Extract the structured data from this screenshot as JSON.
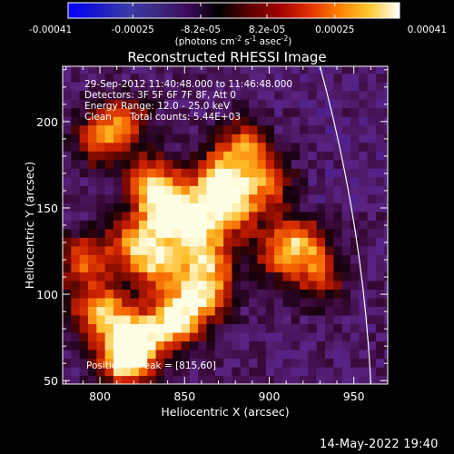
{
  "chart_data": {
    "type": "heatmap",
    "title": "Reconstructed RHESSI Image",
    "xlabel": "Heliocentric X (arcsec)",
    "ylabel": "Heliocentric Y (arcsec)",
    "xlim": [
      778,
      970
    ],
    "ylim": [
      48,
      232
    ],
    "x_ticks": [
      800,
      850,
      900,
      950
    ],
    "y_ticks": [
      50,
      100,
      150,
      200
    ],
    "x_tick_labels": [
      "800",
      "850",
      "900",
      "950"
    ],
    "y_tick_labels": [
      "50",
      "100",
      "150",
      "200"
    ],
    "colorbar": {
      "range": [
        -0.00041,
        0.00041
      ],
      "tick_values": [
        -0.00041,
        -0.00025,
        -8.2e-05,
        8.2e-05,
        0.00025,
        0.00041
      ],
      "tick_labels": [
        "-0.00041",
        "-0.00025",
        "-8.2e-05",
        "8.2e-05",
        "0.00025",
        "0.00041"
      ],
      "units": "(photons cm",
      "units_sup1": "-2",
      "units_mid": " s",
      "units_sup2": "-1",
      "units_end": " asec",
      "units_sup3": "-2",
      "units_close": ")",
      "colormap": [
        "#0000ff",
        "#1a1ac8",
        "#3a3aa8",
        "#3c2880",
        "#3c0a5a",
        "#000000",
        "#5a0000",
        "#a00000",
        "#e03000",
        "#ff8000",
        "#ffc830",
        "#ffffff"
      ]
    },
    "annotations": {
      "time_range": "29-Sep-2012 11:40:48.000 to 11:46:48.000",
      "detectors": "Detectors: 3F 5F 6F 7F 8F, Att 0",
      "energy_range": "Energy Range: 12.0 - 25.0 keV",
      "method": "Clean",
      "total_counts": "Total counts: 5.44E+03",
      "peak": "Position of Peak = [815,60]"
    },
    "peak_position": [
      815,
      60
    ],
    "limb": {
      "description": "solar limb",
      "x_top": 930,
      "y_top": 232,
      "x_bottom": 960,
      "y_bottom": 48
    },
    "hot_spots": [
      {
        "x": 815,
        "y": 62,
        "level": 1.0
      },
      {
        "x": 822,
        "y": 75,
        "level": 0.9
      },
      {
        "x": 800,
        "y": 90,
        "level": 0.85
      },
      {
        "x": 845,
        "y": 85,
        "level": 0.9
      },
      {
        "x": 860,
        "y": 100,
        "level": 0.8
      },
      {
        "x": 835,
        "y": 118,
        "level": 0.75
      },
      {
        "x": 820,
        "y": 130,
        "level": 0.7
      },
      {
        "x": 840,
        "y": 150,
        "level": 0.95
      },
      {
        "x": 830,
        "y": 165,
        "level": 0.7
      },
      {
        "x": 855,
        "y": 140,
        "level": 0.8
      },
      {
        "x": 870,
        "y": 165,
        "level": 0.95
      },
      {
        "x": 878,
        "y": 150,
        "level": 0.75
      },
      {
        "x": 885,
        "y": 185,
        "level": 0.7
      },
      {
        "x": 900,
        "y": 165,
        "level": 0.6
      },
      {
        "x": 905,
        "y": 125,
        "level": 0.55
      },
      {
        "x": 920,
        "y": 130,
        "level": 0.6
      },
      {
        "x": 930,
        "y": 110,
        "level": 0.5
      },
      {
        "x": 800,
        "y": 190,
        "level": 0.55
      },
      {
        "x": 815,
        "y": 200,
        "level": 0.5
      },
      {
        "x": 790,
        "y": 120,
        "level": 0.6
      },
      {
        "x": 865,
        "y": 120,
        "level": 0.65
      }
    ]
  },
  "footer": {
    "date": "14-May-2022 19:40"
  }
}
